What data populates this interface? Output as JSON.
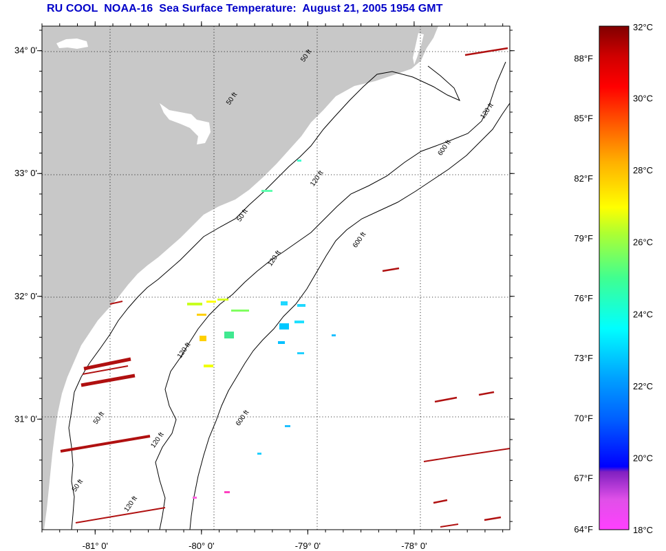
{
  "title": "RU COOL  NOAA-16  Sea Surface Temperature:  August 21, 2005 1954 GMT",
  "map": {
    "lat_ticks": [
      {
        "value": 34,
        "label": "34° 0'"
      },
      {
        "value": 33,
        "label": "33° 0'"
      },
      {
        "value": 32,
        "label": "32° 0'"
      },
      {
        "value": 31,
        "label": "31° 0'"
      }
    ],
    "lon_ticks": [
      {
        "value": -81,
        "label": "-81° 0'"
      },
      {
        "value": -80,
        "label": "-80° 0'"
      },
      {
        "value": -79,
        "label": "-79° 0'"
      },
      {
        "value": -78,
        "label": "-78° 0'"
      }
    ],
    "lat_range": [
      30.1,
      34.2
    ],
    "lon_range": [
      -81.5,
      -77.1
    ],
    "contour_labels": [
      {
        "text": "50 ft",
        "lon": -79.0,
        "lat": 33.95
      },
      {
        "text": "50 ft",
        "lon": -79.7,
        "lat": 33.6
      },
      {
        "text": "50 ft",
        "lon": -79.6,
        "lat": 32.65
      },
      {
        "text": "50 ft",
        "lon": -80.95,
        "lat": 31.0
      },
      {
        "text": "50 ft",
        "lon": -81.15,
        "lat": 30.45
      },
      {
        "text": "120 ft",
        "lon": -77.3,
        "lat": 33.5
      },
      {
        "text": "120 ft",
        "lon": -78.9,
        "lat": 32.95
      },
      {
        "text": "120 ft",
        "lon": -79.3,
        "lat": 32.3
      },
      {
        "text": "120 ft",
        "lon": -80.15,
        "lat": 31.55
      },
      {
        "text": "120 ft",
        "lon": -80.4,
        "lat": 30.82
      },
      {
        "text": "120 ft",
        "lon": -80.65,
        "lat": 30.3
      },
      {
        "text": "600 ft",
        "lon": -77.7,
        "lat": 33.2
      },
      {
        "text": "600 ft",
        "lon": -78.5,
        "lat": 32.45
      },
      {
        "text": "600 ft",
        "lon": -79.6,
        "lat": 31.0
      }
    ]
  },
  "colorbar": {
    "celsius_range": [
      18,
      32
    ],
    "fahrenheit_ticks": [
      "88°F",
      "85°F",
      "82°F",
      "79°F",
      "76°F",
      "73°F",
      "70°F",
      "67°F",
      "64°F"
    ],
    "celsius_ticks": [
      "32°C",
      "30°C",
      "28°C",
      "26°C",
      "24°C",
      "22°C",
      "20°C",
      "18°C"
    ]
  },
  "colors": {
    "land": "#c8c8c8",
    "ocean": "#ffffff",
    "title": "#0000c8",
    "contour": "#000000",
    "warm_streak": "#b01010"
  }
}
